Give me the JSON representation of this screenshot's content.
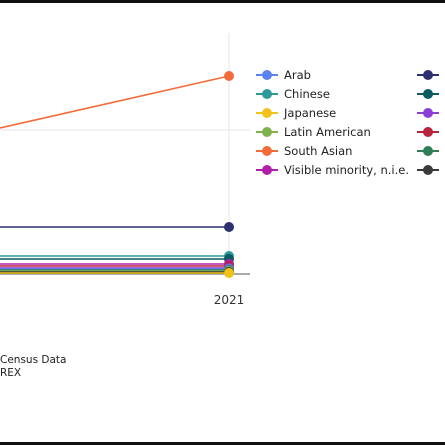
{
  "chart_data": {
    "type": "line",
    "x_tick_labels": [
      "2021"
    ],
    "series": [
      {
        "name": "South Asian",
        "color": "#f26b3a",
        "values": [
          73
        ]
      },
      {
        "name": "",
        "color": "#2e2f6e",
        "values": [
          224
        ]
      },
      {
        "name": "Chinese",
        "color": "#2a9a9a",
        "values": [
          253
        ]
      },
      {
        "name": "",
        "color": "#0d5a63",
        "values": [
          256
        ]
      },
      {
        "name": "Visible minority, n.i.e.",
        "color": "#b11ea7",
        "values": [
          261
        ]
      },
      {
        "name": "",
        "color": "#b8233e",
        "values": [
          263
        ]
      },
      {
        "name": "",
        "color": "#8b3ed6",
        "values": [
          265
        ]
      },
      {
        "name": "Arab",
        "color": "#5b82f0",
        "values": [
          266
        ]
      },
      {
        "name": "",
        "color": "#2e7d57",
        "values": [
          267
        ]
      },
      {
        "name": "Latin American",
        "color": "#7fb24d",
        "values": [
          268
        ]
      },
      {
        "name": "",
        "color": "#3a3a3a",
        "values": [
          269
        ]
      },
      {
        "name": "Japanese",
        "color": "#f0c21a",
        "values": [
          270
        ]
      }
    ]
  },
  "legend": {
    "items": [
      {
        "label": "Arab",
        "color": "#5b82f0"
      },
      {
        "label": "Chinese",
        "color": "#2a9a9a"
      },
      {
        "label": "Japanese",
        "color": "#f0c21a"
      },
      {
        "label": "Latin American",
        "color": "#7fb24d"
      },
      {
        "label": "South Asian",
        "color": "#f26b3a"
      },
      {
        "label": "Visible minority, n.i.e.",
        "color": "#b11ea7"
      }
    ],
    "items2": [
      {
        "color": "#2e2f6e"
      },
      {
        "color": "#0d5a63"
      },
      {
        "color": "#8b3ed6"
      },
      {
        "color": "#b8233e"
      },
      {
        "color": "#2e7d57"
      },
      {
        "color": "#3a3a3a"
      }
    ]
  },
  "source": {
    "line1": "Census Data",
    "line2": "REX"
  }
}
